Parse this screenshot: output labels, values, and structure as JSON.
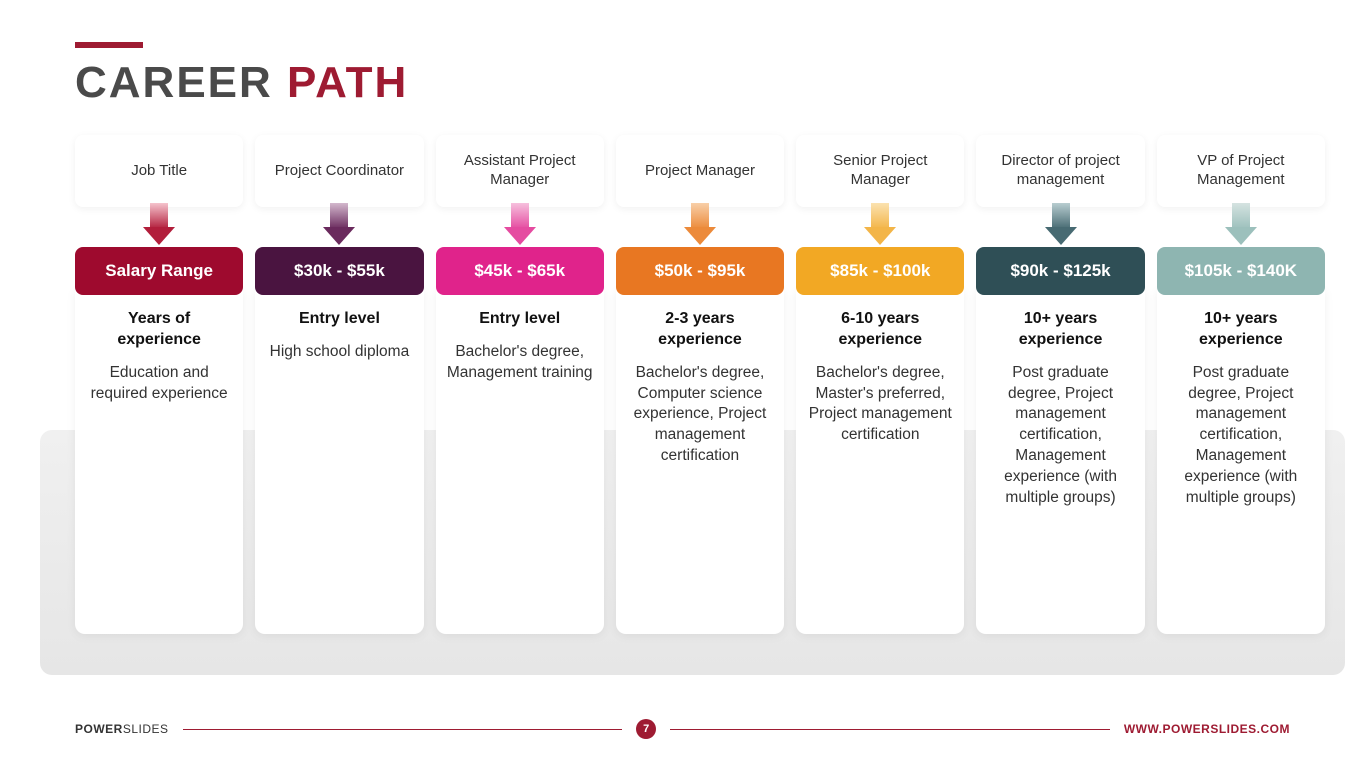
{
  "title": {
    "part1": "CAREER",
    "part2": "PATH"
  },
  "accent_color": "#9e1b32",
  "title_gray": "#4a4a4a",
  "background_color": "#ffffff",
  "band_color_top": "#f0f0f0",
  "band_color_bottom": "#e6e6e6",
  "header_text_color": "#333333",
  "body_text_color": "#333333",
  "exp_text_color": "#111111",
  "salary_text_color": "#ffffff",
  "header_fontsize": 15,
  "salary_fontsize": 17,
  "exp_fontsize": 16,
  "edu_fontsize": 15.5,
  "columns": [
    {
      "header": "Job Title",
      "salary": "Salary Range",
      "experience": "Years of experience",
      "education": "Education and required experience",
      "color_main": "#9e0a2e",
      "arrow_top": "#f5c3cd",
      "arrow_bottom": "#b21e3b"
    },
    {
      "header": "Project Coordinator",
      "salary": "$30k - $55k",
      "experience": "Entry level",
      "education": "High school diploma",
      "color_main": "#4a1440",
      "arrow_top": "#d3b8cd",
      "arrow_bottom": "#6a2a5d"
    },
    {
      "header": "Assistant Project Manager",
      "salary": "$45k - $65k",
      "experience": "Entry level",
      "education": "Bachelor's degree, Management training",
      "color_main": "#e0238b",
      "arrow_top": "#f6c0dd",
      "arrow_bottom": "#e54ba0"
    },
    {
      "header": "Project Manager",
      "salary": "$50k - $95k",
      "experience": "2-3 years experience",
      "education": "Bachelor's degree, Computer science experience, Project management certification",
      "color_main": "#e87722",
      "arrow_top": "#f8cfa8",
      "arrow_bottom": "#ec8a3a"
    },
    {
      "header": "Senior Project Manager",
      "salary": "$85k - $100k",
      "experience": "6-10 years experience",
      "education": "Bachelor's degree, Master's preferred, Project management certification",
      "color_main": "#f2a824",
      "arrow_top": "#fbe2b0",
      "arrow_bottom": "#f3b548"
    },
    {
      "header": "Director of project management",
      "salary": "$90k - $125k",
      "experience": "10+ years experience",
      "education": "Post graduate degree, Project management certification, Management experience (with multiple groups)",
      "color_main": "#2f4f56",
      "arrow_top": "#b8cdd0",
      "arrow_bottom": "#476a72"
    },
    {
      "header": "VP of Project Management",
      "salary": "$105k - $140K",
      "experience": "10+ years experience",
      "education": "Post graduate degree, Project management certification, Management experience (with multiple groups)",
      "color_main": "#8eb5b1",
      "arrow_top": "#d5e3e1",
      "arrow_bottom": "#9cc0bc"
    }
  ],
  "footer": {
    "brand_bold": "POWER",
    "brand_rest": "SLIDES",
    "page": "7",
    "url": "WWW.POWERSLIDES.COM"
  }
}
